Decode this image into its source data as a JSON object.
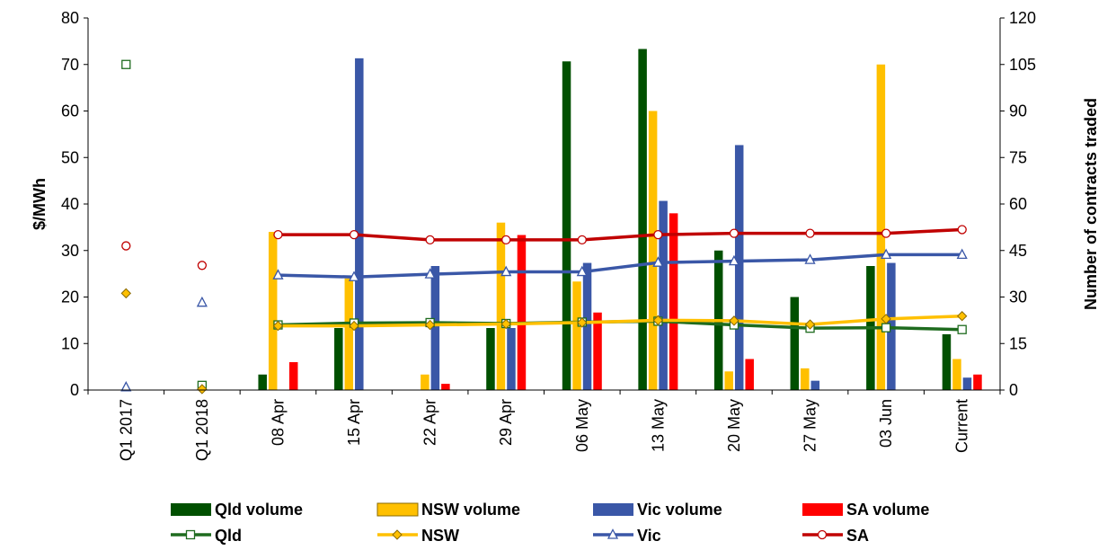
{
  "chart_data": {
    "type": "bar+line",
    "categories": [
      "Q1 2017",
      "Q1 2018",
      "08 Apr",
      "15 Apr",
      "22 Apr",
      "29 Apr",
      "06 May",
      "13 May",
      "20 May",
      "27 May",
      "03 Jun",
      "Current"
    ],
    "left_axis": {
      "label": "$/MWh",
      "ylim": [
        0,
        80
      ],
      "ticks": [
        "0",
        "10",
        "20",
        "30",
        "40",
        "50",
        "60",
        "70",
        "80"
      ]
    },
    "right_axis": {
      "label": "Number of contracts traded",
      "ylim": [
        0,
        120
      ],
      "ticks": [
        "0",
        "15",
        "30",
        "45",
        "60",
        "75",
        "90",
        "105",
        "120"
      ]
    },
    "bar_series": [
      {
        "name": "Qld volume",
        "color": "#005000",
        "axis": "right",
        "values": [
          null,
          null,
          5,
          20,
          null,
          20,
          106,
          110,
          45,
          30,
          40,
          18
        ]
      },
      {
        "name": "NSW volume",
        "color": "#FFC000",
        "axis": "right",
        "values": [
          null,
          null,
          51,
          36,
          5,
          54,
          35,
          90,
          6,
          7,
          105,
          10
        ]
      },
      {
        "name": "Vic volume",
        "color": "#3A57A7",
        "axis": "right",
        "values": [
          null,
          null,
          null,
          107,
          40,
          20,
          41,
          61,
          79,
          3,
          41,
          4
        ]
      },
      {
        "name": "SA volume",
        "color": "#FF0000",
        "axis": "right",
        "values": [
          null,
          null,
          9,
          null,
          2,
          50,
          25,
          57,
          10,
          null,
          null,
          5
        ]
      }
    ],
    "line_series": [
      {
        "name": "Qld",
        "color": "#1E6B1E",
        "marker": "square",
        "axis": "left",
        "values": [
          70,
          1,
          14,
          14.4,
          14.5,
          14.3,
          14.6,
          14.8,
          14,
          13.3,
          13.4,
          13
        ]
      },
      {
        "name": "NSW",
        "color": "#FFC000",
        "marker": "diamond",
        "axis": "left",
        "values": [
          20.8,
          0.2,
          13.8,
          13.8,
          14,
          14.2,
          14.5,
          15,
          14.9,
          14.1,
          15.3,
          15.9
        ]
      },
      {
        "name": "Vic",
        "color": "#3A57A7",
        "marker": "triangle",
        "axis": "left",
        "values": [
          0.6,
          18.8,
          24.7,
          24.3,
          24.9,
          25.4,
          25.4,
          27.4,
          27.7,
          28,
          29.1,
          29.1
        ]
      },
      {
        "name": "SA",
        "color": "#C00000",
        "marker": "circle",
        "axis": "left",
        "values": [
          31,
          26.8,
          33.4,
          33.4,
          32.3,
          32.3,
          32.3,
          33.4,
          33.7,
          33.7,
          33.7,
          34.5
        ]
      }
    ],
    "lines_start_index": 2,
    "grid": false,
    "legend": "bottom"
  }
}
